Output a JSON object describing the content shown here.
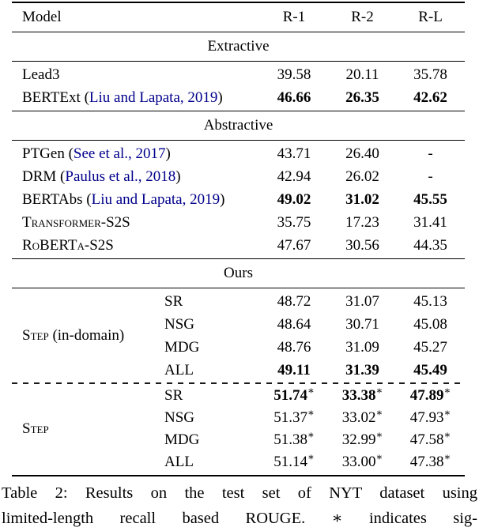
{
  "header": {
    "model": "Model",
    "r1": "R-1",
    "r2": "R-2",
    "rl": "R-L"
  },
  "section_titles": {
    "extractive": "Extractive",
    "abstractive": "Abstractive",
    "ours": "Ours"
  },
  "extractive_rows": [
    {
      "name": "Lead3",
      "r1": "39.58",
      "r2": "20.11",
      "rl": "35.78"
    },
    {
      "name": "BERTExt ",
      "open": "(",
      "cite": "Liu and Lapata, 2019",
      "close": ")",
      "r1": "46.66",
      "r2": "26.35",
      "rl": "42.62"
    }
  ],
  "abstractive_rows": [
    {
      "name": "PTGen ",
      "open": "(",
      "cite": "See et al., 2017",
      "close": ")",
      "r1": "43.71",
      "r2": "26.40",
      "rl": "-"
    },
    {
      "name": "DRM ",
      "open": "(",
      "cite": "Paulus et al., 2018",
      "close": ")",
      "r1": "42.94",
      "r2": "26.02",
      "rl": "-"
    },
    {
      "name": "BERTAbs ",
      "open": "(",
      "cite": "Liu and Lapata, 2019",
      "close": ")",
      "r1": "49.02",
      "r2": "31.02",
      "rl": "45.55"
    },
    {
      "name": "Transformer-S2S",
      "r1": "35.75",
      "r2": "17.23",
      "rl": "31.41"
    },
    {
      "name": "RoBERTa-S2S",
      "r1": "47.67",
      "r2": "30.56",
      "rl": "44.35"
    }
  ],
  "ours_groups": [
    {
      "label_sc": "Step",
      "label_rest": " (in-domain)",
      "rows": [
        {
          "variant": "SR",
          "r1": "48.72",
          "r2": "31.07",
          "rl": "45.13",
          "star": ""
        },
        {
          "variant": "NSG",
          "r1": "48.64",
          "r2": "30.71",
          "rl": "45.08",
          "star": ""
        },
        {
          "variant": "MDG",
          "r1": "48.76",
          "r2": "31.09",
          "rl": "45.27",
          "star": ""
        },
        {
          "variant": "ALL",
          "r1": "49.11",
          "r2": "31.39",
          "rl": "45.49",
          "star": ""
        }
      ]
    },
    {
      "label_sc": "Step",
      "label_rest": "",
      "rows": [
        {
          "variant": "SR",
          "r1": "51.74",
          "r2": "33.38",
          "rl": "47.89",
          "star": "∗"
        },
        {
          "variant": "NSG",
          "r1": "51.37",
          "r2": "33.02",
          "rl": "47.93",
          "star": "∗"
        },
        {
          "variant": "MDG",
          "r1": "51.38",
          "r2": "32.99",
          "rl": "47.58",
          "star": "∗"
        },
        {
          "variant": "ALL",
          "r1": "51.14",
          "r2": "33.00",
          "rl": "47.38",
          "star": "∗"
        }
      ]
    }
  ],
  "caption": {
    "line1": "Table 2: Results on the test set of NYT dataset using",
    "line2": "limited-length recall based ROUGE. ∗ indicates sig-"
  },
  "colors": {
    "citation": "#00008b",
    "text": "#000000"
  }
}
